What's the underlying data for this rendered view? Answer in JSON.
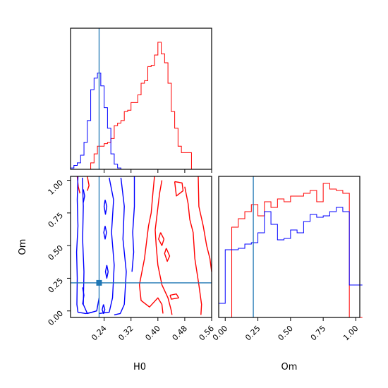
{
  "chart_data": {
    "type": "corner",
    "parameters": [
      "H0",
      "Om"
    ],
    "truth": {
      "H0": 0.225,
      "Om": 0.215
    },
    "truth_color": "#1f77b4",
    "series": [
      {
        "color": "#0000ff"
      },
      {
        "color": "#ff0000"
      }
    ],
    "panels": {
      "h0_hist": {
        "xlim": [
          0.14,
          0.56
        ],
        "bins_start": 0.14,
        "bin_width": 0.01,
        "blue_counts": [
          0.01,
          0.03,
          0.05,
          0.11,
          0.21,
          0.38,
          0.62,
          0.71,
          0.75,
          0.65,
          0.48,
          0.32,
          0.12,
          0.04,
          0.01,
          0,
          0,
          0,
          0,
          0,
          0,
          0,
          0,
          0,
          0,
          0,
          0,
          0,
          0,
          0,
          0,
          0,
          0,
          0,
          0,
          0,
          0,
          0,
          0,
          0,
          0,
          0
        ],
        "red_counts": [
          0,
          0,
          0,
          0,
          0,
          0,
          0.05,
          0.12,
          0.18,
          0.18,
          0.2,
          0.21,
          0.24,
          0.34,
          0.36,
          0.38,
          0.45,
          0.46,
          0.52,
          0.52,
          0.58,
          0.67,
          0.69,
          0.8,
          0.81,
          0.89,
          0.99,
          0.9,
          0.83,
          0.67,
          0.45,
          0.32,
          0.18,
          0.13,
          0.13,
          0.13,
          0,
          0,
          0,
          0,
          0,
          0
        ],
        "xticks": [
          0.24,
          0.32,
          0.4,
          0.48,
          0.56
        ]
      },
      "om_hist": {
        "xlim": [
          -0.05,
          1.03
        ],
        "bins_start": -0.05,
        "bin_width": 0.05,
        "blue_counts": [
          0.1,
          0.48,
          0.48,
          0.49,
          0.52,
          0.53,
          0.6,
          0.75,
          0.66,
          0.55,
          0.56,
          0.62,
          0.6,
          0.68,
          0.73,
          0.71,
          0.72,
          0.75,
          0.78,
          0.75,
          0.23,
          0.23
        ],
        "red_counts": [
          0,
          0,
          0.64,
          0.7,
          0.75,
          0.8,
          0.72,
          0.82,
          0.78,
          0.84,
          0.82,
          0.86,
          0.86,
          0.88,
          0.9,
          0.82,
          0.95,
          0.91,
          0.9,
          0.88,
          0.0,
          0.0
        ],
        "xticks": [
          0.0,
          0.25,
          0.5,
          0.75,
          1.0
        ],
        "xtick_labels": [
          "0.00",
          "0.25",
          "0.50",
          "0.75",
          "1.00"
        ]
      },
      "joint": {
        "xlim": [
          0.14,
          0.56
        ],
        "ylim": [
          -0.05,
          1.03
        ],
        "xticks": [
          0.24,
          0.32,
          0.4,
          0.48,
          0.56
        ],
        "yticks": [
          0.0,
          0.25,
          0.5,
          0.75,
          1.0
        ],
        "xtick_labels": [
          "0.24",
          "0.32",
          "0.40",
          "0.48",
          "0.56"
        ],
        "ytick_labels": [
          "0.00",
          "0.25",
          "0.50",
          "0.75",
          "1.00"
        ],
        "blue_contours": [
          [
            [
              0.162,
              1.03
            ],
            [
              0.16,
              0.85
            ],
            [
              0.162,
              0.65
            ],
            [
              0.158,
              0.45
            ],
            [
              0.16,
              0.25
            ],
            [
              0.159,
              0.05
            ],
            [
              0.162,
              -0.01
            ],
            [
              0.185,
              -0.02
            ],
            [
              0.205,
              -0.01
            ]
          ],
          [
            [
              0.175,
              1.02
            ],
            [
              0.178,
              0.8
            ],
            [
              0.176,
              0.55
            ],
            [
              0.18,
              0.3
            ],
            [
              0.178,
              0.05
            ],
            [
              0.19,
              -0.02
            ],
            [
              0.218,
              0.0
            ],
            [
              0.225,
              0.1
            ]
          ],
          [
            [
              0.255,
              1.02
            ],
            [
              0.268,
              0.85
            ],
            [
              0.262,
              0.6
            ],
            [
              0.27,
              0.35
            ],
            [
              0.265,
              0.1
            ],
            [
              0.255,
              -0.01
            ],
            [
              0.225,
              -0.02
            ]
          ],
          [
            [
              0.29,
              1.02
            ],
            [
              0.3,
              0.8
            ],
            [
              0.296,
              0.55
            ],
            [
              0.306,
              0.3
            ],
            [
              0.3,
              0.05
            ],
            [
              0.288,
              -0.02
            ],
            [
              0.27,
              -0.03
            ]
          ],
          [
            [
              0.33,
              1.03
            ],
            [
              0.33,
              0.8
            ],
            [
              0.325,
              0.6
            ],
            [
              0.328,
              0.45
            ],
            [
              0.323,
              0.3
            ]
          ],
          [
            [
              0.178,
              0.93
            ],
            [
              0.182,
              0.88
            ],
            [
              0.178,
              0.83
            ]
          ],
          [
            [
              0.176,
              0.18
            ],
            [
              0.18,
              0.12
            ],
            [
              0.176,
              0.05
            ]
          ],
          [
            [
              0.243,
              0.85
            ],
            [
              0.248,
              0.8
            ],
            [
              0.244,
              0.74
            ],
            [
              0.24,
              0.8
            ],
            [
              0.243,
              0.85
            ]
          ],
          [
            [
              0.243,
              0.65
            ],
            [
              0.247,
              0.6
            ],
            [
              0.243,
              0.55
            ],
            [
              0.239,
              0.6
            ],
            [
              0.243,
              0.65
            ]
          ],
          [
            [
              0.248,
              0.35
            ],
            [
              0.252,
              0.3
            ],
            [
              0.248,
              0.25
            ],
            [
              0.244,
              0.3
            ],
            [
              0.248,
              0.35
            ]
          ],
          [
            [
              0.238,
              0.05
            ],
            [
              0.242,
              0.01
            ],
            [
              0.238,
              -0.02
            ],
            [
              0.234,
              0.01
            ],
            [
              0.238,
              0.05
            ]
          ]
        ],
        "red_contours": [
          [
            [
              0.16,
              1.03
            ],
            [
              0.163,
              0.95
            ],
            [
              0.168,
              0.9
            ]
          ],
          [
            [
              0.19,
              1.03
            ],
            [
              0.195,
              0.96
            ],
            [
              0.19,
              0.92
            ]
          ],
          [
            [
              0.39,
              1.03
            ],
            [
              0.385,
              0.9
            ],
            [
              0.38,
              0.75
            ],
            [
              0.372,
              0.65
            ],
            [
              0.36,
              0.4
            ],
            [
              0.345,
              0.2
            ],
            [
              0.35,
              0.08
            ],
            [
              0.375,
              0.03
            ],
            [
              0.4,
              0.1
            ],
            [
              0.412,
              0.05
            ],
            [
              0.415,
              -0.02
            ]
          ],
          [
            [
              0.412,
              1.0
            ],
            [
              0.405,
              0.9
            ],
            [
              0.398,
              0.75
            ],
            [
              0.392,
              0.62
            ],
            [
              0.395,
              0.5
            ],
            [
              0.4,
              0.35
            ],
            [
              0.412,
              0.2
            ],
            [
              0.43,
              0.1
            ],
            [
              0.44,
              0.0
            ],
            [
              0.442,
              -0.03
            ]
          ],
          [
            [
              0.45,
              0.99
            ],
            [
              0.472,
              0.98
            ],
            [
              0.475,
              0.92
            ],
            [
              0.455,
              0.88
            ],
            [
              0.45,
              0.99
            ]
          ],
          [
            [
              0.48,
              0.95
            ],
            [
              0.49,
              0.82
            ],
            [
              0.495,
              0.7
            ],
            [
              0.505,
              0.6
            ],
            [
              0.51,
              0.4
            ],
            [
              0.522,
              0.2
            ],
            [
              0.53,
              0.05
            ],
            [
              0.528,
              -0.03
            ]
          ],
          [
            [
              0.52,
              1.03
            ],
            [
              0.522,
              0.8
            ],
            [
              0.535,
              0.65
            ],
            [
              0.545,
              0.5
            ],
            [
              0.555,
              0.4
            ],
            [
              0.56,
              0.3
            ]
          ],
          [
            [
              0.408,
              0.6
            ],
            [
              0.418,
              0.55
            ],
            [
              0.412,
              0.5
            ],
            [
              0.402,
              0.55
            ],
            [
              0.408,
              0.6
            ]
          ],
          [
            [
              0.425,
              0.48
            ],
            [
              0.435,
              0.42
            ],
            [
              0.428,
              0.38
            ],
            [
              0.42,
              0.44
            ],
            [
              0.425,
              0.48
            ]
          ],
          [
            [
              0.436,
              0.12
            ],
            [
              0.455,
              0.13
            ],
            [
              0.462,
              0.1
            ],
            [
              0.44,
              0.09
            ],
            [
              0.436,
              0.12
            ]
          ]
        ]
      }
    },
    "labels": {
      "x_left": "H0",
      "x_right": "Om",
      "y_left": "Om"
    }
  }
}
